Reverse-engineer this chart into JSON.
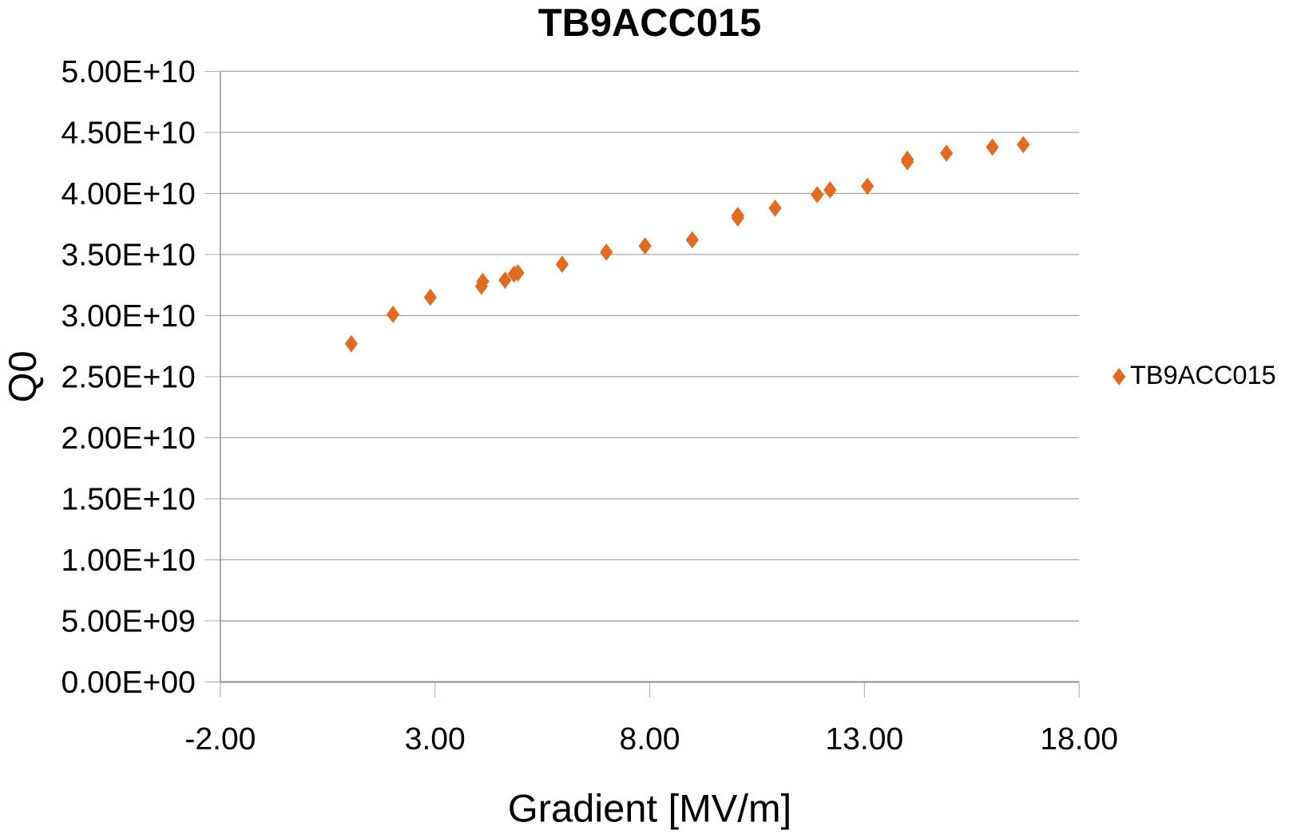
{
  "chart_data": {
    "type": "scatter",
    "title": "TB9ACC015",
    "xlabel": "Gradient [MV/m]",
    "ylabel": "Q0",
    "xlim": [
      -2,
      18
    ],
    "xticks": [
      {
        "value": -2,
        "label": "-2.00"
      },
      {
        "value": 3,
        "label": "3.00"
      },
      {
        "value": 8,
        "label": "8.00"
      },
      {
        "value": 13,
        "label": "13.00"
      },
      {
        "value": 18,
        "label": "18.00"
      }
    ],
    "ylim": [
      0,
      50000000000
    ],
    "yticks": [
      {
        "value": 0,
        "label": "0.00E+00"
      },
      {
        "value": 5000000000,
        "label": "5.00E+09"
      },
      {
        "value": 10000000000,
        "label": "1.00E+10"
      },
      {
        "value": 15000000000,
        "label": "1.50E+10"
      },
      {
        "value": 20000000000,
        "label": "2.00E+10"
      },
      {
        "value": 25000000000,
        "label": "2.50E+10"
      },
      {
        "value": 30000000000,
        "label": "3.00E+10"
      },
      {
        "value": 35000000000,
        "label": "3.50E+10"
      },
      {
        "value": 40000000000,
        "label": "4.00E+10"
      },
      {
        "value": 45000000000,
        "label": "4.50E+10"
      },
      {
        "value": 50000000000,
        "label": "5.00E+10"
      }
    ],
    "grid": "y",
    "legend": "right",
    "marker": "diamond",
    "series": [
      {
        "name": "TB9ACC015",
        "color": "#e06c23",
        "x": [
          1.05,
          2.02,
          2.89,
          4.08,
          4.11,
          4.63,
          4.84,
          4.93,
          5.96,
          6.99,
          7.89,
          8.99,
          10.05,
          10.05,
          10.92,
          11.9,
          12.2,
          13.07,
          14.0,
          14.0,
          14.91,
          15.98,
          16.7
        ],
        "values": [
          27700000000,
          30100000000,
          31500000000,
          32400000000,
          32800000000,
          32900000000,
          33400000000,
          33500000000,
          34200000000,
          35200000000,
          35700000000,
          36200000000,
          38000000000,
          38200000000,
          38800000000,
          39900000000,
          40300000000,
          40600000000,
          42600000000,
          42800000000,
          43300000000,
          43800000000,
          44000000000
        ]
      }
    ]
  }
}
